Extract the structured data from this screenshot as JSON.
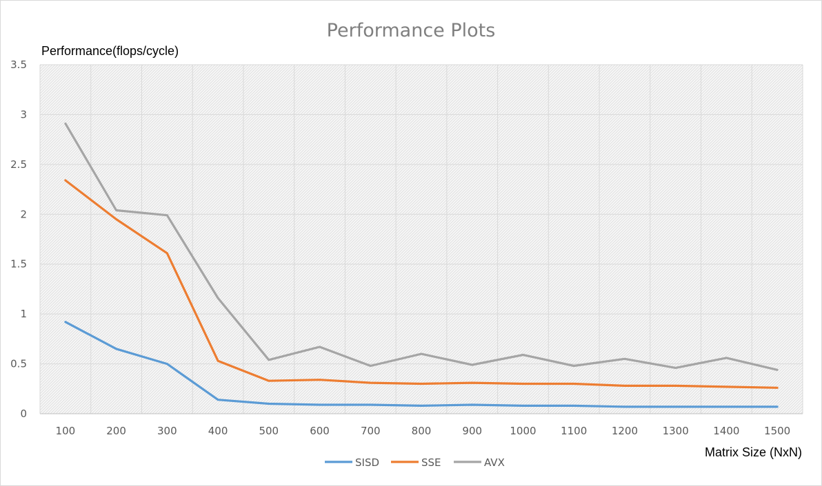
{
  "chart_data": {
    "type": "line",
    "title": "Performance Plots",
    "ylabel": "Performance(flops/cycle)",
    "xlabel": "Matrix Size (NxN)",
    "categories": [
      "100",
      "200",
      "300",
      "400",
      "500",
      "600",
      "700",
      "800",
      "900",
      "1000",
      "1100",
      "1200",
      "1300",
      "1400",
      "1500"
    ],
    "ylim": [
      0,
      3.5
    ],
    "yticks": [
      "0",
      "0.5",
      "1",
      "1.5",
      "2",
      "2.5",
      "3",
      "3.5"
    ],
    "grid": true,
    "legend_position": "bottom",
    "series": [
      {
        "name": "SISD",
        "color": "#5b9bd5",
        "values": [
          0.92,
          0.65,
          0.5,
          0.14,
          0.1,
          0.09,
          0.09,
          0.08,
          0.09,
          0.08,
          0.08,
          0.07,
          0.07,
          0.07,
          0.07
        ]
      },
      {
        "name": "SSE",
        "color": "#ed7d31",
        "values": [
          2.34,
          1.95,
          1.61,
          0.53,
          0.33,
          0.34,
          0.31,
          0.3,
          0.31,
          0.3,
          0.3,
          0.28,
          0.28,
          0.27,
          0.26
        ]
      },
      {
        "name": "AVX",
        "color": "#a5a5a5",
        "values": [
          2.91,
          2.04,
          1.99,
          1.16,
          0.54,
          0.67,
          0.48,
          0.6,
          0.49,
          0.59,
          0.48,
          0.55,
          0.46,
          0.56,
          0.44
        ]
      }
    ]
  }
}
